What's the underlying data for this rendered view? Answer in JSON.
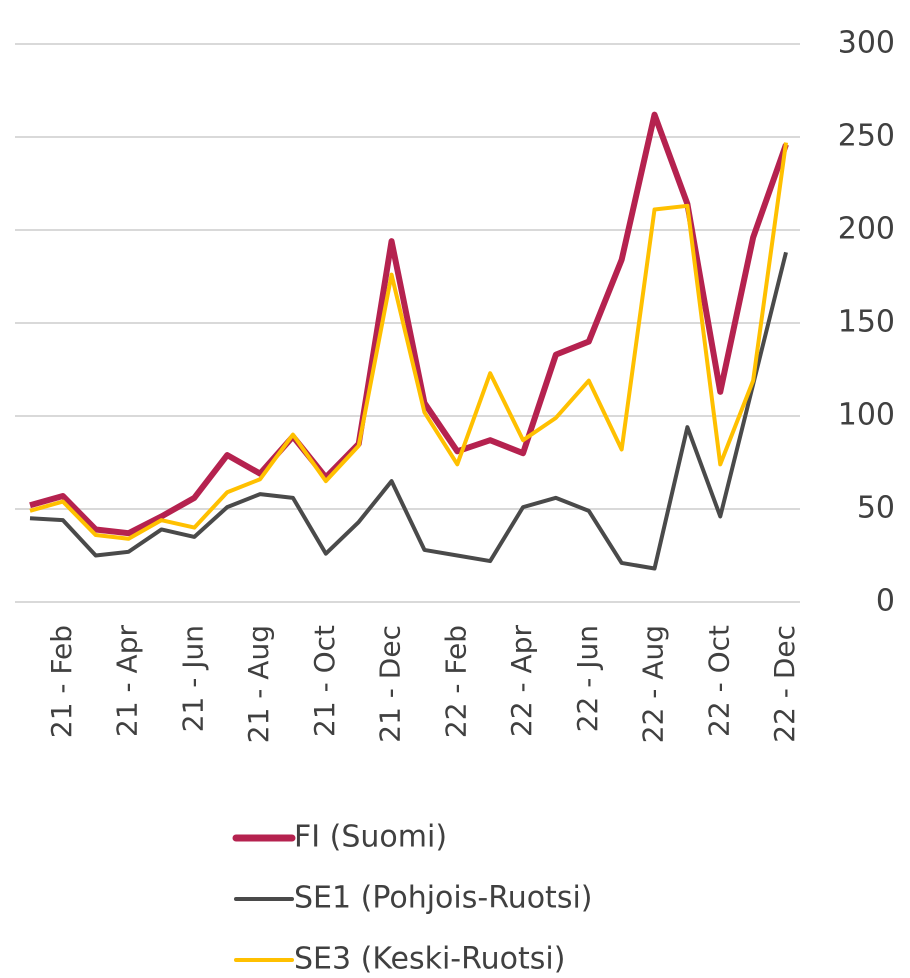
{
  "chart_data": {
    "type": "line",
    "categories": [
      null,
      "21 - Feb",
      null,
      "21 - Apr",
      null,
      "21 - Jun",
      null,
      "21 - Aug",
      null,
      "21 - Oct",
      null,
      "21 - Dec",
      null,
      "22 - Feb",
      null,
      "22 - Apr",
      null,
      "22 - Jun",
      null,
      "22 - Aug",
      null,
      "22 - Oct",
      null,
      "22 - Dec"
    ],
    "series": [
      {
        "name": "FI (Suomi)",
        "color": "#b5224f",
        "values": [
          52,
          57,
          39,
          37,
          46,
          56,
          79,
          69,
          89,
          67,
          85,
          194,
          107,
          81,
          87,
          80,
          133,
          140,
          184,
          262,
          214,
          113,
          196,
          246
        ]
      },
      {
        "name": "SE1 (Pohjois-Ruotsi)",
        "color": "#4a4a4a",
        "values": [
          45,
          44,
          25,
          27,
          39,
          35,
          51,
          58,
          56,
          26,
          43,
          65,
          28,
          25,
          22,
          51,
          56,
          49,
          21,
          18,
          94,
          46,
          117,
          188
        ]
      },
      {
        "name": "SE3 (Keski-Ruotsi)",
        "color": "#ffc000",
        "values": [
          49,
          54,
          36,
          34,
          44,
          40,
          59,
          66,
          90,
          65,
          84,
          176,
          102,
          74,
          123,
          87,
          99,
          119,
          82,
          211,
          213,
          74,
          119,
          247
        ]
      }
    ],
    "ylim": [
      0,
      300
    ],
    "yticks": [
      0,
      50,
      100,
      150,
      200,
      250,
      300
    ],
    "grid": true,
    "legend": "bottom"
  }
}
